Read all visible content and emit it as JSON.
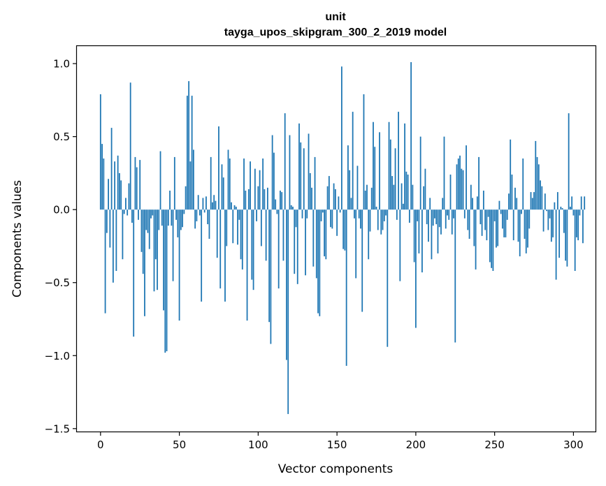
{
  "chart_data": {
    "type": "bar",
    "title_line1": "unit",
    "title_line2": "tayga_upos_skipgram_300_2_2019 model",
    "xlabel": "Vector components",
    "ylabel": "Components values",
    "xlim": [
      -15,
      314
    ],
    "ylim": [
      -1.52,
      1.12
    ],
    "xticks": [
      0,
      50,
      100,
      150,
      200,
      250,
      300
    ],
    "xtick_labels": [
      "0",
      "50",
      "100",
      "150",
      "200",
      "250",
      "300"
    ],
    "yticks": [
      1.0,
      0.5,
      0.0,
      -0.5,
      -1.0,
      -1.5
    ],
    "ytick_labels": [
      "1.0",
      "0.5",
      "0.0",
      "−0.5",
      "−1.0",
      "−1.5"
    ],
    "bar_color": "#1f77b4",
    "values": [
      0.79,
      0.45,
      0.35,
      -0.71,
      -0.16,
      0.21,
      -0.26,
      0.56,
      -0.5,
      0.33,
      -0.42,
      0.37,
      0.25,
      0.2,
      -0.34,
      -0.03,
      0.08,
      -0.04,
      0.18,
      0.87,
      -0.09,
      -0.87,
      0.36,
      0.29,
      -0.07,
      0.34,
      -0.29,
      -0.44,
      -0.73,
      -0.14,
      -0.16,
      -0.27,
      -0.06,
      -0.04,
      -0.56,
      -0.34,
      -0.55,
      -0.14,
      0.4,
      -0.11,
      -0.69,
      -0.98,
      -0.97,
      -0.11,
      0.13,
      -0.11,
      -0.49,
      0.36,
      -0.07,
      -0.19,
      -0.76,
      -0.14,
      -0.12,
      -0.03,
      0.16,
      0.78,
      0.88,
      0.33,
      0.78,
      0.41,
      -0.13,
      -0.08,
      0.1,
      -0.04,
      -0.63,
      0.08,
      -0.02,
      0.09,
      -0.1,
      -0.2,
      0.36,
      0.05,
      0.1,
      0.06,
      -0.33,
      0.57,
      -0.54,
      0.31,
      0.22,
      -0.63,
      -0.25,
      0.41,
      0.35,
      0.05,
      -0.23,
      0.03,
      0.02,
      -0.24,
      -0.07,
      -0.34,
      -0.41,
      0.35,
      0.13,
      -0.76,
      0.14,
      0.33,
      -0.48,
      -0.55,
      0.28,
      -0.08,
      0.16,
      0.27,
      -0.25,
      0.35,
      0.14,
      -0.35,
      0.15,
      -0.77,
      -0.92,
      0.51,
      0.39,
      0.07,
      -0.03,
      -0.54,
      0.13,
      0.12,
      -0.35,
      0.66,
      -1.03,
      -1.4,
      0.51,
      0.03,
      0.02,
      -0.44,
      -0.12,
      -0.51,
      0.59,
      0.46,
      -0.06,
      0.42,
      -0.45,
      -0.06,
      0.52,
      0.25,
      0.15,
      -0.39,
      0.36,
      -0.47,
      -0.71,
      -0.73,
      -0.08,
      -0.02,
      -0.32,
      -0.34,
      0.16,
      0.23,
      -0.12,
      -0.13,
      0.18,
      0.14,
      -0.18,
      0.09,
      -0.02,
      0.98,
      -0.27,
      -0.28,
      -1.07,
      0.44,
      0.27,
      0.08,
      0.67,
      -0.06,
      -0.47,
      0.3,
      -0.06,
      -0.13,
      -0.7,
      0.79,
      0.13,
      0.17,
      -0.34,
      -0.15,
      0.15,
      0.6,
      0.43,
      0.02,
      -0.14,
      0.53,
      -0.17,
      -0.14,
      -0.08,
      -0.04,
      -0.94,
      0.6,
      0.48,
      0.23,
      0.17,
      0.42,
      -0.07,
      0.67,
      -0.49,
      0.18,
      0.04,
      0.59,
      0.26,
      0.24,
      -0.09,
      1.01,
      0.17,
      -0.36,
      -0.81,
      -0.08,
      -0.3,
      0.5,
      -0.43,
      0.16,
      0.28,
      -0.1,
      -0.22,
      0.08,
      -0.34,
      -0.11,
      -0.06,
      -0.1,
      -0.3,
      -0.12,
      -0.17,
      0.08,
      0.5,
      -0.13,
      -0.04,
      -0.07,
      0.24,
      -0.17,
      -0.06,
      -0.91,
      0.31,
      0.35,
      0.37,
      0.28,
      0.27,
      -0.06,
      0.44,
      -0.14,
      -0.2,
      0.17,
      0.08,
      -0.25,
      -0.41,
      0.09,
      0.36,
      -0.1,
      -0.18,
      0.13,
      -0.14,
      -0.21,
      -0.05,
      -0.36,
      -0.4,
      -0.42,
      -0.08,
      -0.26,
      -0.25,
      0.06,
      -0.03,
      -0.13,
      -0.19,
      -0.19,
      -0.07,
      0.11,
      0.48,
      0.24,
      -0.21,
      0.15,
      0.08,
      -0.22,
      -0.32,
      -0.03,
      0.35,
      -0.2,
      -0.3,
      -0.26,
      -0.13,
      0.12,
      0.08,
      0.12,
      0.47,
      0.36,
      0.31,
      0.2,
      0.16,
      -0.15,
      0.11,
      -0.01,
      -0.14,
      -0.06,
      -0.22,
      -0.19,
      0.05,
      -0.48,
      0.12,
      -0.33,
      0.02,
      0.01,
      -0.16,
      -0.35,
      -0.39,
      0.66,
      0.02,
      0.09,
      -0.04,
      -0.42,
      -0.19,
      -0.21,
      -0.04,
      0.09,
      -0.23,
      0.09
    ]
  }
}
